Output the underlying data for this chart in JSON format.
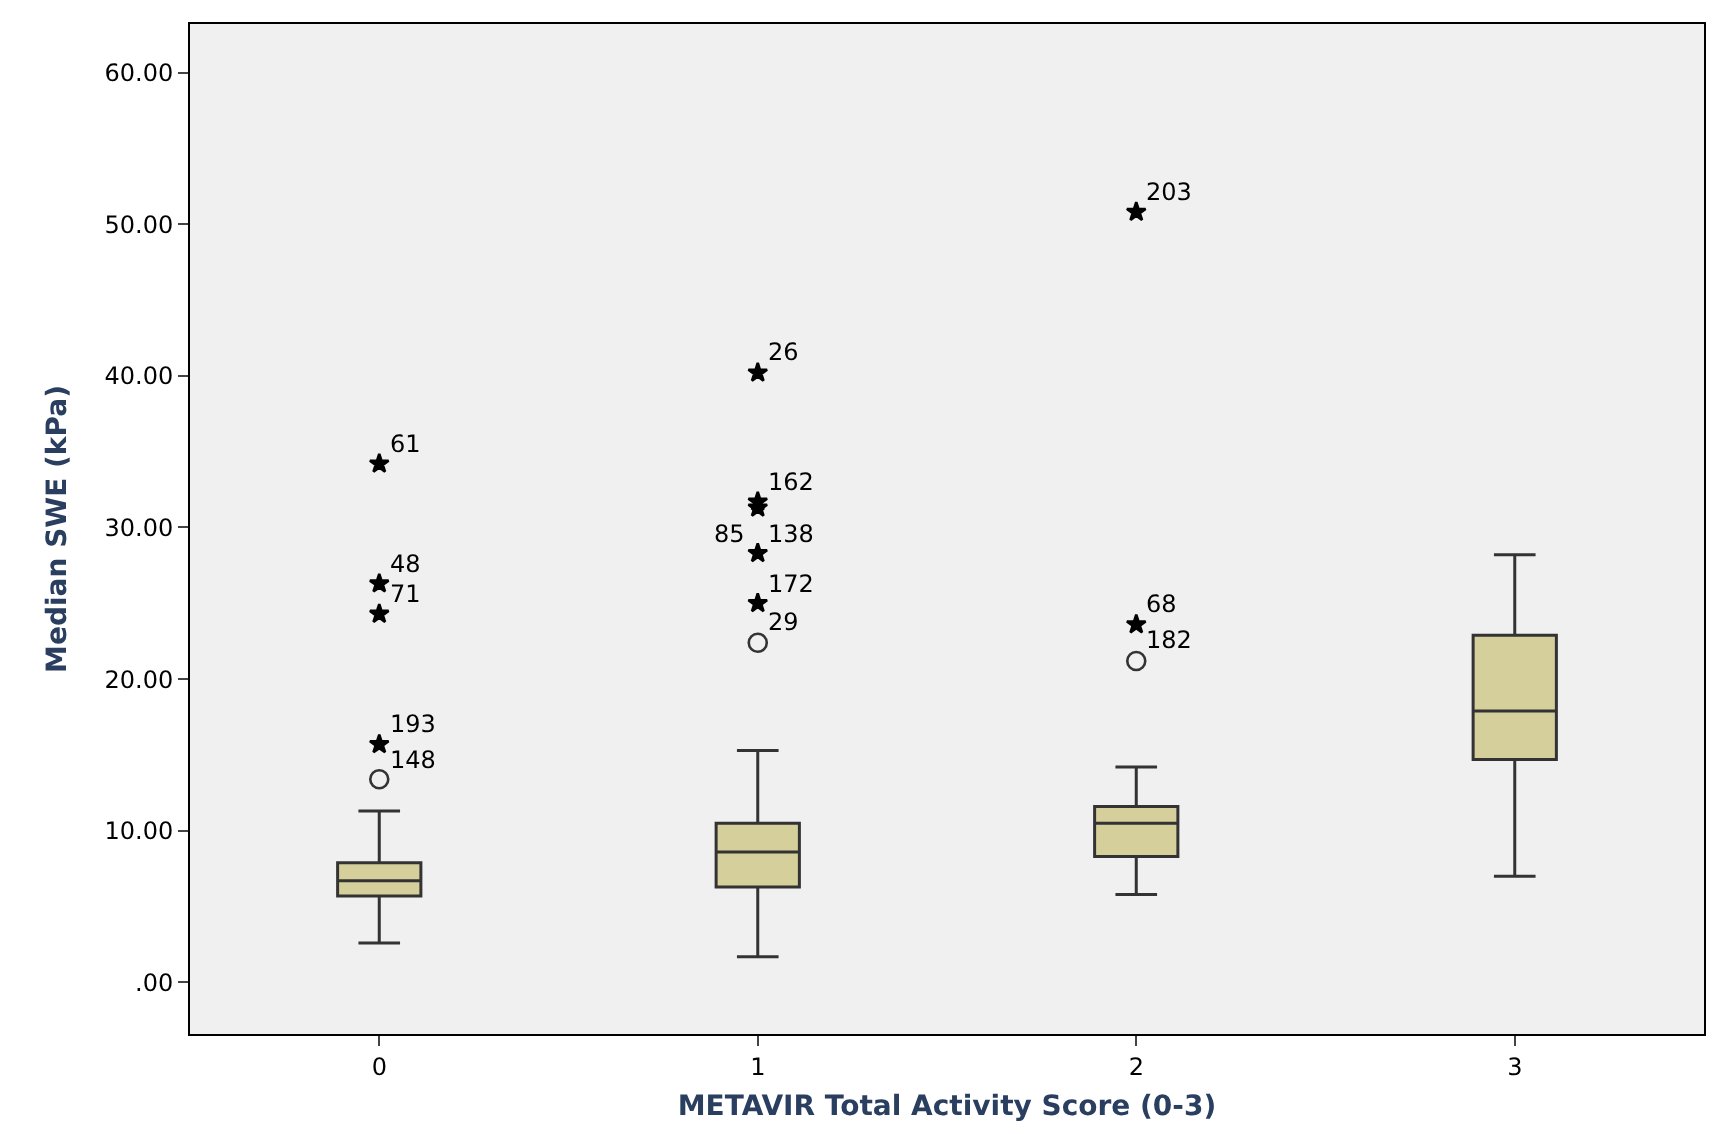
{
  "chart_data": {
    "type": "box",
    "xlabel": "METAVIR Total Activity Score (0-3)",
    "ylabel": "Median SWE (kPa)",
    "categories": [
      "0",
      "1",
      "2",
      "3"
    ],
    "boxes": [
      {
        "low": 2.6,
        "q1": 5.7,
        "median": 6.7,
        "q3": 7.9,
        "high": 11.3
      },
      {
        "low": 1.7,
        "q1": 6.3,
        "median": 8.6,
        "q3": 10.5,
        "high": 15.3
      },
      {
        "low": 5.8,
        "q1": 8.3,
        "median": 10.5,
        "q3": 11.6,
        "high": 14.2
      },
      {
        "low": 7.0,
        "q1": 14.7,
        "median": 17.9,
        "q3": 22.9,
        "high": 28.2
      }
    ],
    "color": "#d5cf9b",
    "series": [
      {
        "type": "scatter",
        "marker": "circle",
        "color": "#333333",
        "x": [
          "0",
          "1",
          "2"
        ],
        "values": [
          13.4,
          22.4,
          21.2
        ]
      },
      {
        "type": "scatter",
        "marker": "star",
        "color": "#000000",
        "x": [
          "0",
          "0",
          "0",
          "0",
          "1",
          "1",
          "1",
          "1",
          "1",
          "1",
          "2",
          "2"
        ],
        "values": [
          15.7,
          24.3,
          26.3,
          34.2,
          25.0,
          28.3,
          null,
          31.3,
          31.7,
          40.2,
          23.6,
          50.8
        ]
      }
    ],
    "ylim": [
      -3.4,
      63.2
    ],
    "yticks": [
      {
        "value": 0,
        "label": ".00"
      },
      {
        "value": 10,
        "label": "10.00"
      },
      {
        "value": 20,
        "label": "20.00"
      },
      {
        "value": 30,
        "label": "30.00"
      },
      {
        "value": 40,
        "label": "40.00"
      },
      {
        "value": 50,
        "label": "50.00"
      },
      {
        "value": 60,
        "label": "60.00"
      }
    ],
    "grid": false,
    "annotations": [
      {
        "text": "148",
        "x": "0",
        "y": 13.4
      },
      {
        "text": "193",
        "x": "0",
        "y": 15.7
      },
      {
        "text": "71",
        "x": "0",
        "y": 24.3
      },
      {
        "text": "48",
        "x": "0",
        "y": 26.3
      },
      {
        "text": "61",
        "x": "0",
        "y": 34.2
      },
      {
        "text": "29",
        "x": "1",
        "y": 22.4
      },
      {
        "text": "172",
        "x": "1",
        "y": 25.0
      },
      {
        "text": "138",
        "x": "1",
        "y": 28.3
      },
      {
        "text": "85",
        "x": "1",
        "y": 28.3
      },
      {
        "text": "162",
        "x": "1",
        "y": 31.7
      },
      {
        "text": "26",
        "x": "1",
        "y": 40.2
      },
      {
        "text": "182",
        "x": "2",
        "y": 21.2
      },
      {
        "text": "68",
        "x": "2",
        "y": 23.6
      },
      {
        "text": "203",
        "x": "2",
        "y": 50.8
      }
    ]
  }
}
